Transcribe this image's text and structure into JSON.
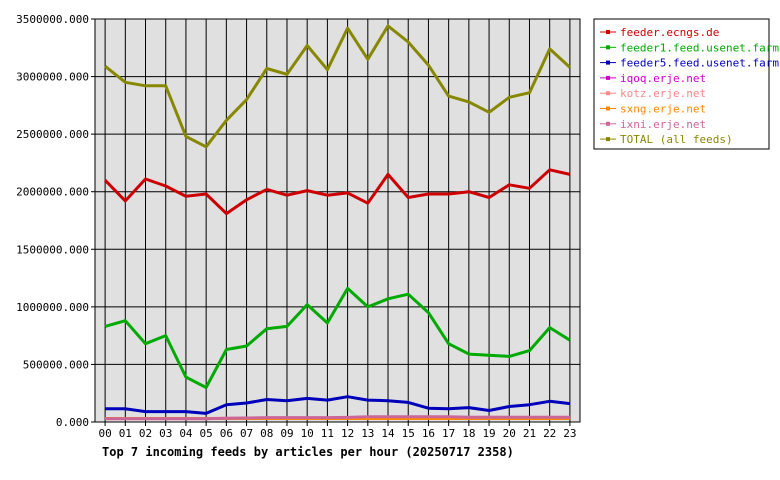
{
  "chart_data": {
    "type": "line",
    "title": "Top 7 incoming feeds by articles per hour (20250717 2358)",
    "xlabel": "",
    "ylabel": "",
    "ylim": [
      0,
      3500000
    ],
    "yticks": [
      "0.000",
      "500000.000",
      "1000000.000",
      "1500000.000",
      "2000000.000",
      "2500000.000",
      "3000000.000",
      "3500000.000"
    ],
    "x": [
      "00",
      "01",
      "02",
      "03",
      "04",
      "05",
      "06",
      "07",
      "08",
      "09",
      "10",
      "11",
      "12",
      "13",
      "14",
      "15",
      "16",
      "17",
      "18",
      "19",
      "20",
      "21",
      "22",
      "23"
    ],
    "grid": true,
    "legend_position": "right",
    "series": [
      {
        "name": "feeder.ecngs.de",
        "color": "#cc0000",
        "values": [
          2100000,
          1920000,
          2110000,
          2050000,
          1960000,
          1980000,
          1810000,
          1930000,
          2020000,
          1970000,
          2010000,
          1970000,
          1990000,
          1900000,
          2150000,
          1950000,
          1980000,
          1980000,
          2000000,
          1950000,
          2060000,
          2030000,
          2190000,
          2150000
        ]
      },
      {
        "name": "feeder1.feed.usenet.farm",
        "color": "#00aa00",
        "values": [
          830000,
          880000,
          680000,
          750000,
          390000,
          300000,
          630000,
          660000,
          810000,
          830000,
          1020000,
          860000,
          1160000,
          1000000,
          1070000,
          1110000,
          950000,
          680000,
          590000,
          580000,
          570000,
          620000,
          820000,
          710000
        ]
      },
      {
        "name": "feeder5.feed.usenet.farm",
        "color": "#0000bb",
        "values": [
          115000,
          115000,
          90000,
          90000,
          90000,
          75000,
          150000,
          165000,
          195000,
          185000,
          205000,
          190000,
          220000,
          190000,
          185000,
          170000,
          120000,
          115000,
          125000,
          100000,
          135000,
          150000,
          180000,
          160000
        ]
      },
      {
        "name": "iqoq.erje.net",
        "color": "#cc00cc",
        "values": [
          30000,
          30000,
          30000,
          30000,
          30000,
          30000,
          30000,
          30000,
          30000,
          30000,
          30000,
          30000,
          30000,
          30000,
          30000,
          30000,
          30000,
          30000,
          30000,
          30000,
          30000,
          30000,
          30000,
          30000
        ]
      },
      {
        "name": "kotz.erje.net",
        "color": "#ff8888",
        "values": [
          30000,
          30000,
          30000,
          30000,
          30000,
          30000,
          32000,
          32000,
          35000,
          35000,
          35000,
          35000,
          38000,
          40000,
          40000,
          40000,
          40000,
          40000,
          40000,
          40000,
          40000,
          40000,
          40000,
          40000
        ]
      },
      {
        "name": "sxng.erje.net",
        "color": "#ff8800",
        "values": [
          30000,
          30000,
          30000,
          30000,
          30000,
          30000,
          30000,
          30000,
          30000,
          30000,
          30000,
          30000,
          30000,
          30000,
          30000,
          30000,
          30000,
          30000,
          30000,
          30000,
          30000,
          30000,
          30000,
          30000
        ]
      },
      {
        "name": "ixni.erje.net",
        "color": "#cc6699",
        "values": [
          28000,
          28000,
          28000,
          28000,
          28000,
          28000,
          32000,
          35000,
          38000,
          38000,
          38000,
          38000,
          40000,
          45000,
          45000,
          45000,
          45000,
          45000,
          42000,
          42000,
          42000,
          42000,
          42000,
          42000
        ]
      },
      {
        "name": "TOTAL (all feeds)",
        "color": "#888800",
        "values": [
          3090000,
          2950000,
          2920000,
          2920000,
          2480000,
          2390000,
          2620000,
          2800000,
          3070000,
          3020000,
          3270000,
          3060000,
          3420000,
          3150000,
          3440000,
          3300000,
          3100000,
          2830000,
          2780000,
          2690000,
          2820000,
          2860000,
          3240000,
          3080000
        ]
      }
    ]
  }
}
